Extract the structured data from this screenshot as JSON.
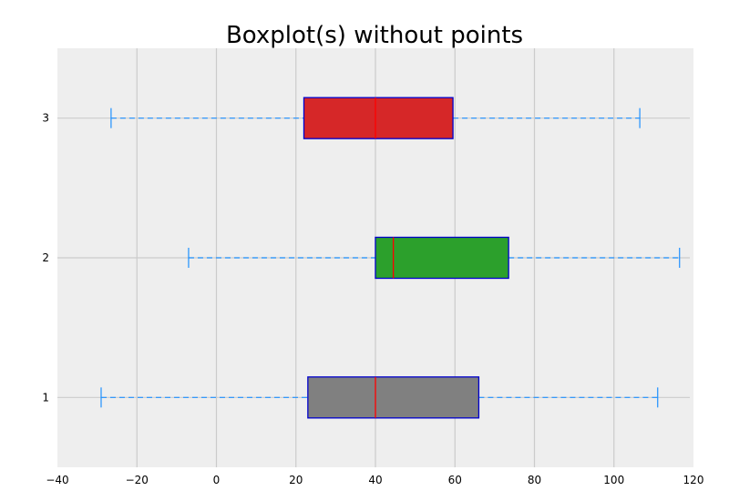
{
  "chart_data": {
    "type": "boxplot",
    "orientation": "horizontal",
    "title": "Boxplot(s) without points",
    "xlabel": "",
    "ylabel": "",
    "xlim": [
      -40,
      120
    ],
    "ylim": [
      0.5,
      3.5
    ],
    "xticks": [
      -40,
      -20,
      0,
      20,
      40,
      60,
      80,
      100,
      120
    ],
    "xtick_labels": [
      "−40",
      "−20",
      "0",
      "20",
      "40",
      "60",
      "80",
      "100",
      "120"
    ],
    "yticks": [
      1,
      2,
      3
    ],
    "ytick_labels": [
      "1",
      "2",
      "3"
    ],
    "grid": true,
    "show_fliers": false,
    "boxes": [
      {
        "position": 1,
        "whislo": -29,
        "q1": 23,
        "med": 40,
        "q3": 66,
        "whishi": 111,
        "fill": "#808080"
      },
      {
        "position": 2,
        "whislo": -7,
        "q1": 40,
        "med": 44.5,
        "q3": 73.5,
        "whishi": 116.5,
        "fill": "#2ca02c"
      },
      {
        "position": 3,
        "whislo": -26.5,
        "q1": 22,
        "med": 40,
        "q3": 59.5,
        "whishi": 106.5,
        "fill": "#d62728"
      }
    ],
    "colors": {
      "background": "#eeeeee",
      "grid": "#cbcbcb",
      "box_edge": "#0000cc",
      "median": "#ff0000",
      "whisker": "#1e90ff"
    }
  }
}
